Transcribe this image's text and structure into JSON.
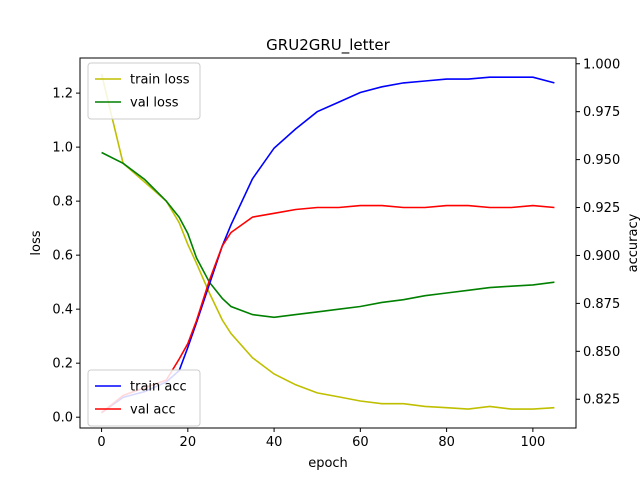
{
  "chart_data": {
    "type": "line",
    "title": "GRU2GRU_letter",
    "xlabel": "epoch",
    "ylabel_left": "loss",
    "ylabel_right": "accuracy",
    "xlim": [
      -5,
      110
    ],
    "ylim_left": [
      -0.04,
      1.33
    ],
    "ylim_right": [
      0.81,
      1.003
    ],
    "x_ticks": [
      0,
      20,
      40,
      60,
      80,
      100
    ],
    "y_ticks_left": [
      0.0,
      0.2,
      0.4,
      0.6,
      0.8,
      1.0,
      1.2
    ],
    "y_ticks_right": [
      0.825,
      0.85,
      0.875,
      0.9,
      0.925,
      0.95,
      0.975,
      1.0
    ],
    "grid": false,
    "legend_loss_placement": "top-left",
    "legend_acc_placement": "bottom-left",
    "x": [
      0,
      5,
      10,
      15,
      18,
      20,
      22,
      25,
      28,
      30,
      35,
      40,
      45,
      50,
      55,
      60,
      65,
      70,
      75,
      80,
      85,
      90,
      95,
      100,
      105
    ],
    "series": [
      {
        "name": "train loss",
        "axis": "left",
        "color": "#bfbf00",
        "values": [
          1.27,
          0.94,
          0.87,
          0.8,
          0.72,
          0.64,
          0.57,
          0.46,
          0.36,
          0.31,
          0.22,
          0.16,
          0.12,
          0.09,
          0.075,
          0.06,
          0.05,
          0.05,
          0.04,
          0.035,
          0.03,
          0.04,
          0.03,
          0.03,
          0.035
        ]
      },
      {
        "name": "val loss",
        "axis": "left",
        "color": "#008000",
        "values": [
          0.98,
          0.94,
          0.88,
          0.8,
          0.74,
          0.68,
          0.59,
          0.5,
          0.44,
          0.41,
          0.38,
          0.37,
          0.38,
          0.39,
          0.4,
          0.41,
          0.425,
          0.435,
          0.45,
          0.46,
          0.47,
          0.48,
          0.485,
          0.49,
          0.5
        ]
      },
      {
        "name": "train acc",
        "axis": "right",
        "color": "#0000ff",
        "values": [
          0.818,
          0.826,
          0.829,
          0.834,
          0.84,
          0.852,
          0.865,
          0.885,
          0.905,
          0.916,
          0.94,
          0.956,
          0.966,
          0.975,
          0.98,
          0.985,
          0.988,
          0.99,
          0.991,
          0.992,
          0.992,
          0.993,
          0.993,
          0.993,
          0.99
        ]
      },
      {
        "name": "val acc",
        "axis": "right",
        "color": "#ff0000",
        "values": [
          0.818,
          0.827,
          0.831,
          0.835,
          0.846,
          0.854,
          0.866,
          0.887,
          0.905,
          0.912,
          0.92,
          0.922,
          0.924,
          0.925,
          0.925,
          0.926,
          0.926,
          0.925,
          0.925,
          0.926,
          0.926,
          0.925,
          0.925,
          0.926,
          0.925
        ]
      }
    ]
  }
}
